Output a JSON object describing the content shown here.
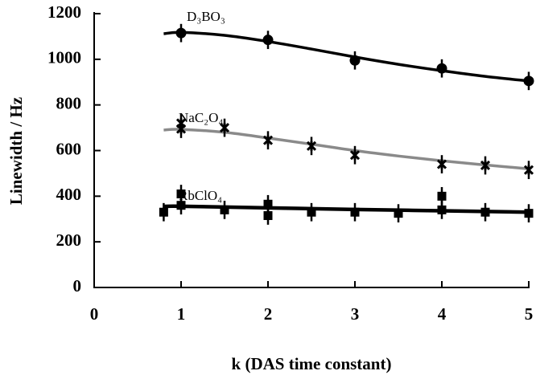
{
  "chart_data": {
    "type": "scatter",
    "x_label": "k (DAS time constant)",
    "y_label": "Linewidth / Hz",
    "xlim": [
      0,
      5
    ],
    "ylim": [
      0,
      1200
    ],
    "xticks": [
      0,
      1,
      2,
      3,
      4,
      5
    ],
    "yticks": [
      0,
      200,
      400,
      600,
      800,
      1000,
      1200
    ],
    "series": [
      {
        "name": "D₃BO₃",
        "marker": "circle",
        "color": "#000000",
        "error": 40,
        "x": [
          1,
          2,
          3,
          4,
          5
        ],
        "values": [
          1115,
          1085,
          995,
          960,
          905
        ],
        "fit": {
          "color": "#000000",
          "width": 3.5,
          "x": [
            0.8,
            1,
            1.5,
            2,
            2.5,
            3,
            3.5,
            4,
            4.5,
            5
          ],
          "values": [
            1112,
            1118,
            1105,
            1078,
            1045,
            1010,
            978,
            950,
            925,
            905
          ]
        }
      },
      {
        "name": "NaC₂O₄",
        "marker": "star",
        "color": "#000000",
        "error": 40,
        "x": [
          1,
          1,
          1.5,
          2,
          2.5,
          3,
          4,
          4.5,
          5
        ],
        "values": [
          720,
          695,
          700,
          645,
          620,
          580,
          540,
          535,
          515
        ],
        "fit": {
          "color": "#8a8a8a",
          "width": 3.5,
          "x": [
            0.8,
            1,
            1.5,
            2,
            2.5,
            3,
            3.5,
            4,
            4.5,
            5
          ],
          "values": [
            690,
            693,
            680,
            655,
            628,
            600,
            576,
            555,
            537,
            520
          ]
        }
      },
      {
        "name": "RbClO₄",
        "marker": "square",
        "color": "#000000",
        "error": 40,
        "x": [
          0.8,
          1,
          1,
          1.5,
          2,
          2,
          2.5,
          3,
          3.5,
          4,
          4,
          4.5,
          5
        ],
        "values": [
          330,
          410,
          360,
          340,
          365,
          315,
          330,
          330,
          325,
          400,
          340,
          330,
          325
        ],
        "fit": {
          "color": "#000000",
          "width": 4.5,
          "x": [
            0.8,
            1,
            2,
            3,
            4,
            5
          ],
          "values": [
            355,
            356,
            349,
            342,
            336,
            330
          ]
        }
      }
    ]
  }
}
